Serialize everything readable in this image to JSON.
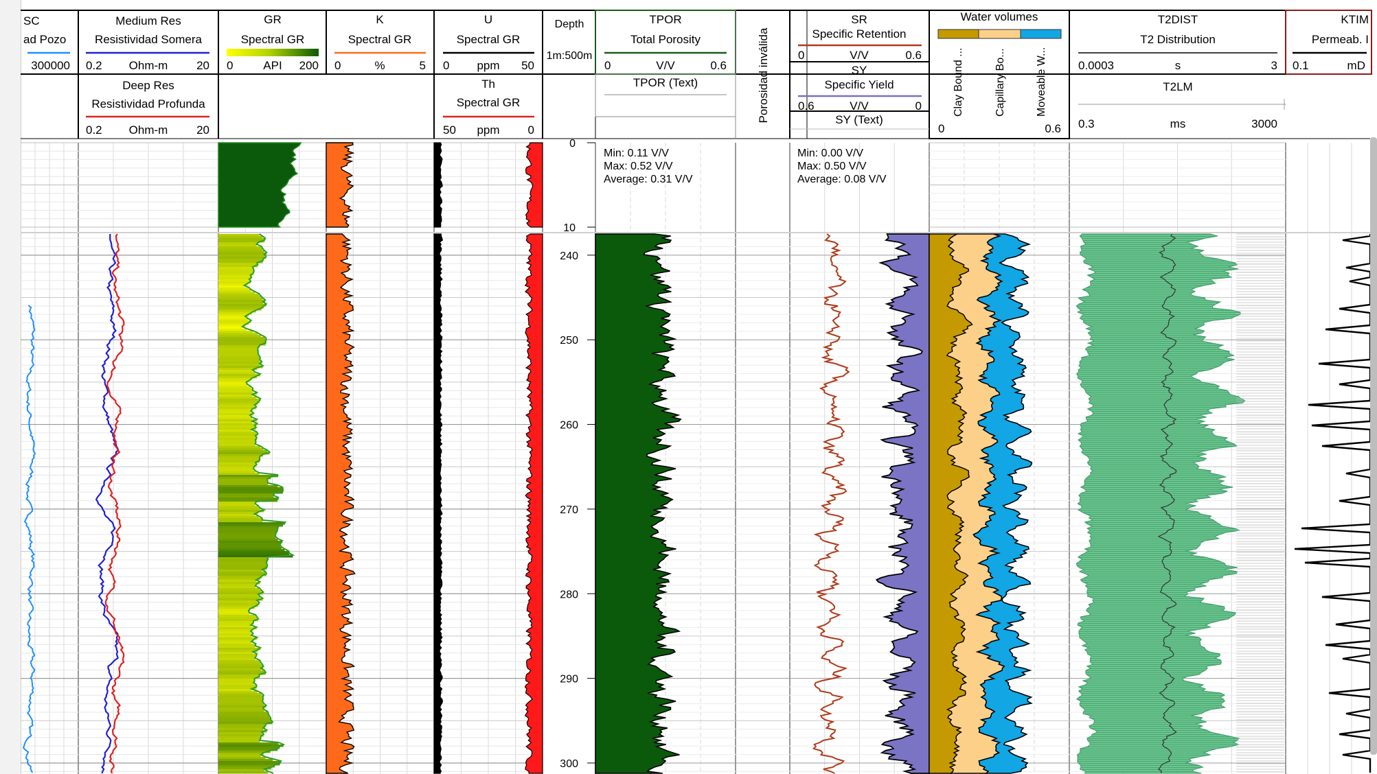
{
  "tracks": {
    "gamma": {
      "frag_title": "SC",
      "frag_sub": "ad Pozo",
      "frag_max": "300000"
    },
    "res": {
      "medium": {
        "name": "Medium Res",
        "desc": "Resistividad Somera",
        "min": "0.2",
        "unit": "Ohm-m",
        "max": "20",
        "color": "#1f1fd6"
      },
      "deep": {
        "name": "Deep Res",
        "desc": "Resistividad Profunda",
        "min": "0.2",
        "unit": "Ohm-m",
        "max": "20",
        "color": "#e02020"
      }
    },
    "gr": {
      "name": "GR",
      "desc": "Spectral GR",
      "min": "0",
      "unit": "API",
      "max": "200"
    },
    "k": {
      "name": "K",
      "desc": "Spectral GR",
      "min": "0",
      "unit": "%",
      "max": "5",
      "color": "#ff6a1a"
    },
    "u": {
      "name": "U",
      "desc": "Spectral GR",
      "min": "0",
      "unit": "ppm",
      "max": "50"
    },
    "th": {
      "name": "Th",
      "desc": "Spectral GR",
      "min": "50",
      "unit": "ppm",
      "max": "0",
      "color": "#ff1a1a"
    },
    "depth": {
      "name": "Depth",
      "scale": "1m:500m"
    },
    "tpor": {
      "name": "TPOR",
      "desc": "Total Porosity",
      "min": "0",
      "unit": "V/V",
      "max": "0.6",
      "text_title": "TPOR (Text)",
      "stats": {
        "min": "Min: 0.11 V/V",
        "max": "Max: 0.52 V/V",
        "avg": "Average: 0.31 V/V"
      }
    },
    "invalid": {
      "name": "Porosidad inválida"
    },
    "sr": {
      "name": "SR",
      "desc": "Specific Retention",
      "min": "0",
      "unit": "V/V",
      "max": "0.6"
    },
    "sy": {
      "name": "SY",
      "desc": "Specific Yield",
      "min": "0.6",
      "unit": "V/V",
      "max": "0",
      "text_title": "SY (Text)",
      "stats": {
        "min": "Min: 0.00 V/V",
        "max": "Max: 0.50 V/V",
        "avg": "Average: 0.08 V/V"
      }
    },
    "water": {
      "name": "Water volumes",
      "labels": [
        "Clay Bound ...",
        "Capillary Bo...",
        "Moveable W..."
      ],
      "min": "0",
      "max": "0.6",
      "colors": [
        "#c49a00",
        "#fdd08a",
        "#12a6e4"
      ]
    },
    "t2dist": {
      "name": "T2DIST",
      "desc": "T2 Distribution",
      "min": "0.0003",
      "unit": "s",
      "max": "3"
    },
    "t2lm": {
      "name": "T2LM",
      "min": "0.3",
      "unit": "ms",
      "max": "3000"
    },
    "ktim": {
      "name": "KTIM",
      "desc": "Permeab. I",
      "min": "0.1",
      "unit": "mD"
    }
  },
  "chart_data": {
    "type": "well-log",
    "depth_axis": {
      "top_section": {
        "range": [
          0,
          10
        ],
        "ticks": [
          0,
          10
        ]
      },
      "main_section": {
        "range": [
          237.5,
          301.3
        ],
        "ticks": [
          240,
          250,
          260,
          270,
          280,
          290,
          300
        ]
      }
    },
    "series": [
      {
        "name": "Medium Res",
        "track": "res",
        "approx_range": [
          3.5,
          6.5
        ]
      },
      {
        "name": "Deep Res",
        "track": "res",
        "approx_range": [
          4.5,
          7.5
        ]
      },
      {
        "name": "GR",
        "track": "gr",
        "approx_range": [
          35,
          110
        ]
      },
      {
        "name": "K",
        "track": "k",
        "approx_range": [
          0.2,
          1.7
        ]
      },
      {
        "name": "U",
        "track": "u",
        "approx_range": [
          0,
          6
        ]
      },
      {
        "name": "Th",
        "track": "th",
        "approx_range": [
          0,
          3
        ]
      },
      {
        "name": "TPOR",
        "track": "tpor",
        "approx_range": [
          0.11,
          0.52
        ]
      },
      {
        "name": "SR",
        "track": "sr",
        "approx_range": [
          0.05,
          0.25
        ]
      },
      {
        "name": "SY",
        "track": "sy",
        "approx_range": [
          0.0,
          0.5
        ]
      },
      {
        "name": "T2LM",
        "track": "t2lm",
        "approx_range": [
          5,
          200
        ]
      },
      {
        "name": "KTIM",
        "track": "ktim",
        "approx_range": [
          0.1,
          5
        ]
      }
    ]
  }
}
